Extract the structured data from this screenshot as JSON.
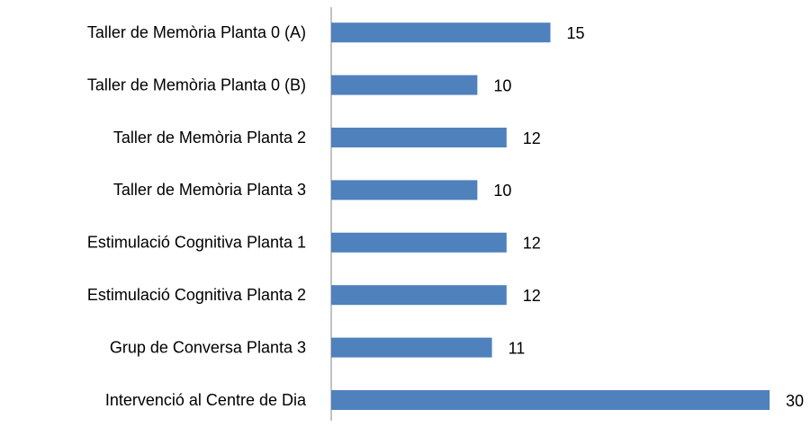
{
  "chart_data": {
    "type": "barh",
    "categories": [
      "Taller de Memòria Planta 0 (A)",
      "Taller de Memòria Planta 0 (B)",
      "Taller de Memòria Planta 2",
      "Taller de Memòria Planta 3",
      "Estimulació Cognitiva Planta 1",
      "Estimulació Cognitiva Planta 2",
      "Grup de Conversa Planta 3",
      "Intervenció al Centre de Dia"
    ],
    "values": [
      15,
      10,
      12,
      10,
      12,
      12,
      11,
      30
    ],
    "color": "#4f81bd"
  }
}
